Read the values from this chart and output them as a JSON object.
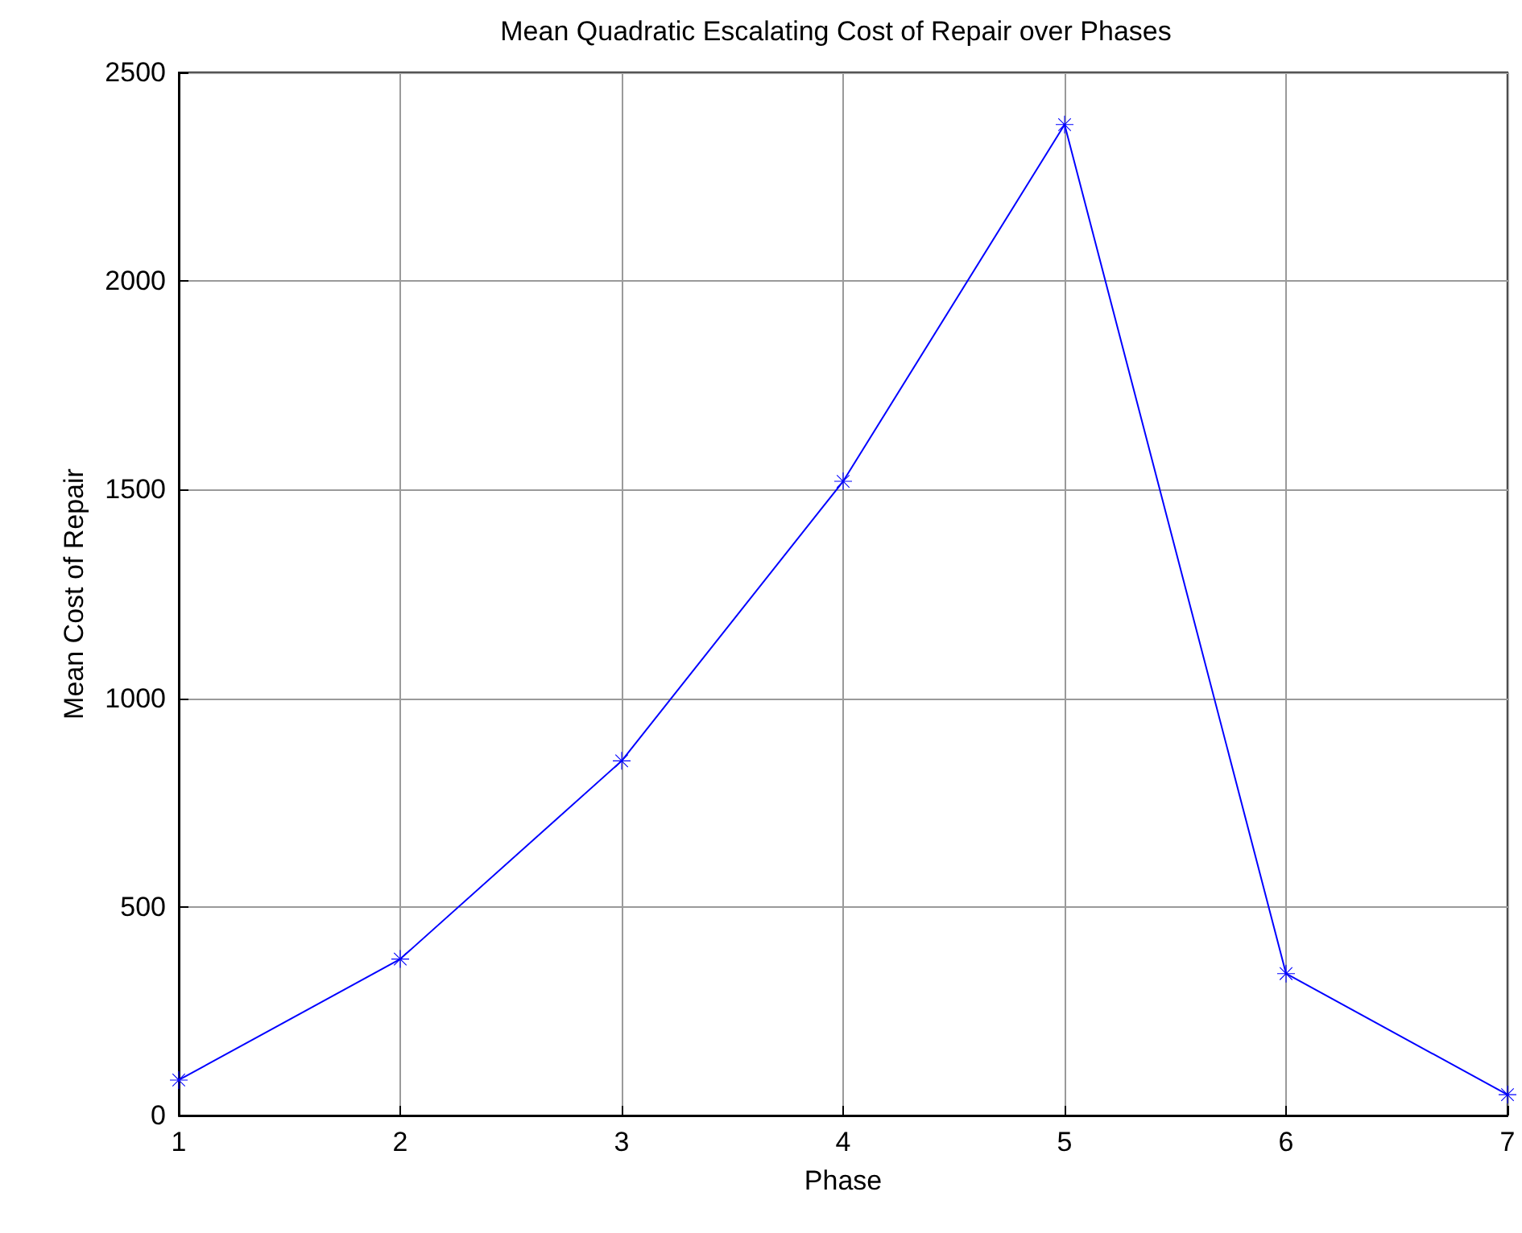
{
  "chart_data": {
    "type": "line",
    "title": "Mean Quadratic Escalating Cost of Repair over Phases",
    "xlabel": "Phase",
    "ylabel": "Mean Cost of Repair",
    "x": [
      1,
      2,
      3,
      4,
      5,
      6,
      7
    ],
    "series": [
      {
        "color": "#0000ff",
        "values": [
          85,
          375,
          850,
          1520,
          2375,
          340,
          50
        ]
      }
    ],
    "xlim": [
      1,
      7
    ],
    "xticks": [
      1,
      2,
      3,
      4,
      5,
      6,
      7
    ],
    "ylim": [
      0,
      2500
    ],
    "yticks": [
      0,
      500,
      1000,
      1500,
      2000,
      2500
    ],
    "grid": true,
    "marker": "star",
    "line_style": "solid"
  }
}
